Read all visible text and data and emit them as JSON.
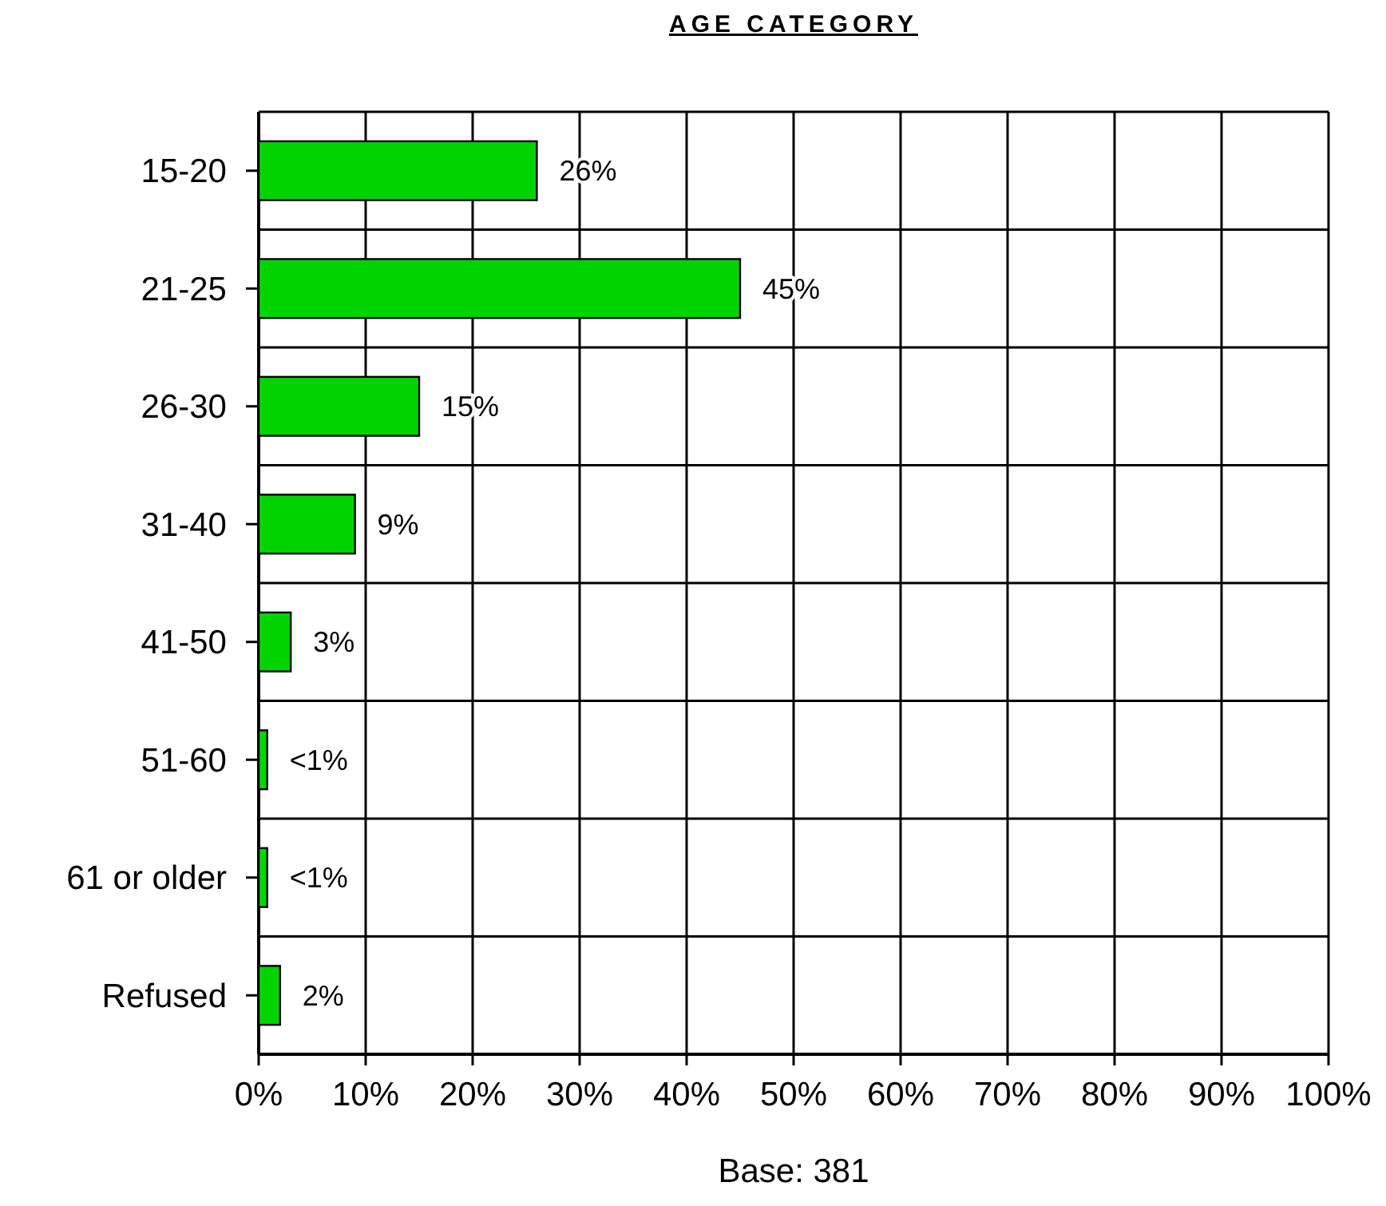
{
  "chart_data": {
    "type": "bar",
    "orientation": "horizontal",
    "title": "AGE CATEGORY",
    "categories": [
      "15-20",
      "21-25",
      "26-30",
      "31-40",
      "41-50",
      "51-60",
      "61 or older",
      "Refused"
    ],
    "values": [
      26,
      45,
      15,
      9,
      3,
      0.8,
      0.8,
      2
    ],
    "value_labels": [
      "26%",
      "45%",
      "15%",
      "9%",
      "3%",
      "<1%",
      "<1%",
      "2%"
    ],
    "color": "#00d400",
    "xlim": [
      0,
      100
    ],
    "xticks": [
      {
        "value": 0,
        "label": "0%"
      },
      {
        "value": 10,
        "label": "10%"
      },
      {
        "value": 20,
        "label": "20%"
      },
      {
        "value": 30,
        "label": "30%"
      },
      {
        "value": 40,
        "label": "40%"
      },
      {
        "value": 50,
        "label": "50%"
      },
      {
        "value": 60,
        "label": "60%"
      },
      {
        "value": 70,
        "label": "70%"
      },
      {
        "value": 80,
        "label": "80%"
      },
      {
        "value": 90,
        "label": "90%"
      },
      {
        "value": 100,
        "label": "100%"
      }
    ],
    "grid": true,
    "annotations": [
      "Base: 381"
    ]
  }
}
